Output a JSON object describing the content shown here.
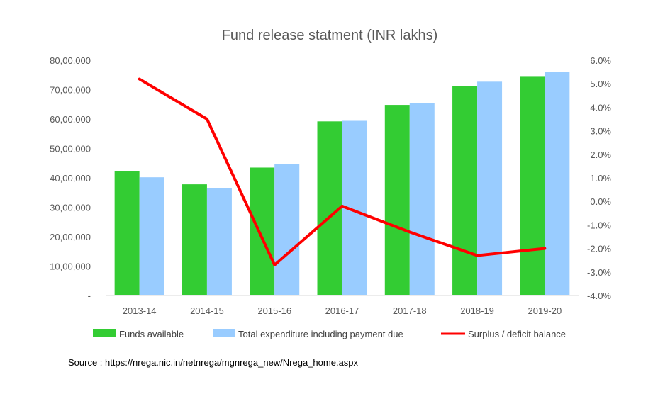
{
  "chart_data": {
    "type": "bar",
    "title": "Fund release statment (INR lakhs)",
    "categories": [
      "2013-14",
      "2014-15",
      "2015-16",
      "2016-17",
      "2017-18",
      "2018-19",
      "2019-20"
    ],
    "series": [
      {
        "name": "Funds available",
        "kind": "bar",
        "axis": "left",
        "color": "#33CC33",
        "values": [
          4230000,
          3780000,
          4350000,
          5920000,
          6480000,
          7120000,
          7460000
        ]
      },
      {
        "name": "Total expenditure including payment due",
        "kind": "bar",
        "axis": "left",
        "color": "#99CCFF",
        "values": [
          4020000,
          3650000,
          4480000,
          5940000,
          6550000,
          7270000,
          7600000
        ]
      },
      {
        "name": "Surplus / deficit balance",
        "kind": "line",
        "axis": "right",
        "color": "#FF0000",
        "values": [
          5.2,
          3.5,
          -2.7,
          -0.2,
          -1.3,
          -2.3,
          -2.0
        ]
      }
    ],
    "y_left": {
      "min": 0,
      "max": 8000000,
      "step": 1000000,
      "tick_labels": [
        "-",
        "10,00,000",
        "20,00,000",
        "30,00,000",
        "40,00,000",
        "50,00,000",
        "60,00,000",
        "70,00,000",
        "80,00,000"
      ]
    },
    "y_right": {
      "min": -4,
      "max": 6,
      "step": 1,
      "tick_labels": [
        "-4.0%",
        "-3.0%",
        "-2.0%",
        "-1.0%",
        "0.0%",
        "1.0%",
        "2.0%",
        "3.0%",
        "4.0%",
        "5.0%",
        "6.0%"
      ]
    },
    "grid": false,
    "legend_position": "bottom"
  },
  "source": "Source : https://nrega.nic.in/netnrega/mgnrega_new/Nrega_home.aspx"
}
